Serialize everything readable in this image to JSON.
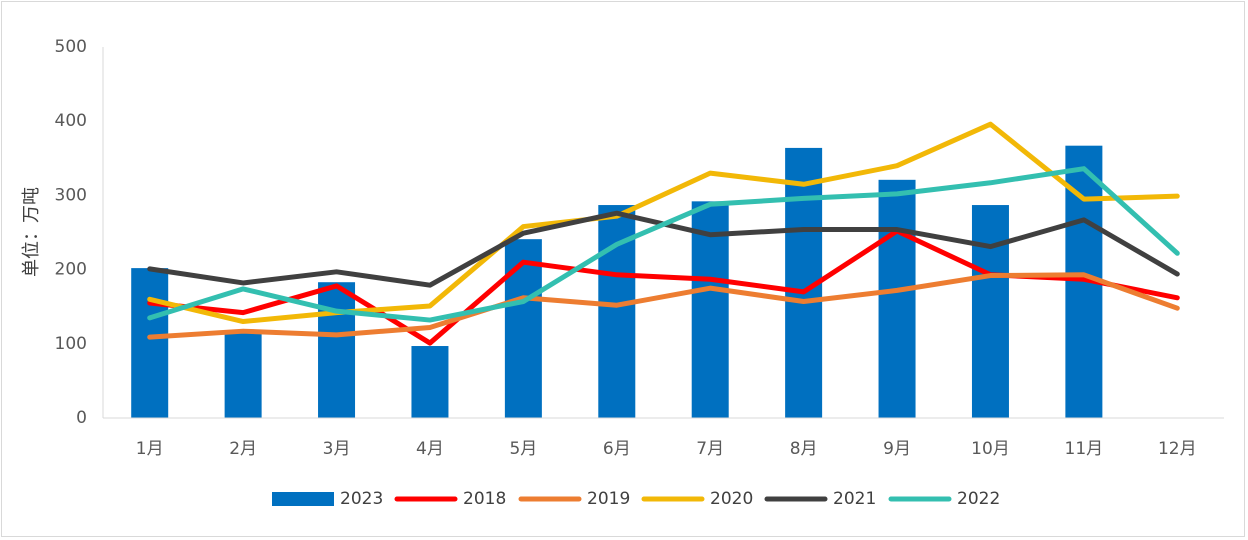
{
  "chart_data": {
    "type": "bar+line",
    "title": "",
    "ylabel": "单位：万吨",
    "xlabel": "",
    "ylim": [
      0,
      500
    ],
    "yticks": [
      0,
      100,
      200,
      300,
      400,
      500
    ],
    "grid": false,
    "legend_position": "bottom",
    "categories": [
      "1月",
      "2月",
      "3月",
      "4月",
      "5月",
      "6月",
      "7月",
      "8月",
      "9月",
      "10月",
      "11月",
      "12月"
    ],
    "bar_series": {
      "name": "2023",
      "color": "#0070C0",
      "values": [
        202,
        115,
        183,
        97,
        241,
        287,
        292,
        364,
        321,
        287,
        367,
        null
      ]
    },
    "line_series": [
      {
        "name": "2018",
        "color": "#FF0000",
        "values": [
          155,
          142,
          178,
          101,
          210,
          193,
          187,
          170,
          252,
          193,
          187,
          162
        ]
      },
      {
        "name": "2019",
        "color": "#ED7D31",
        "values": [
          109,
          117,
          112,
          122,
          162,
          152,
          175,
          157,
          172,
          192,
          193,
          148
        ]
      },
      {
        "name": "2020",
        "color": "#F2B807",
        "values": [
          160,
          130,
          142,
          151,
          258,
          272,
          330,
          315,
          340,
          396,
          295,
          299
        ]
      },
      {
        "name": "2021",
        "color": "#404040",
        "values": [
          201,
          182,
          197,
          179,
          249,
          276,
          247,
          254,
          254,
          231,
          267,
          194
        ]
      },
      {
        "name": "2022",
        "color": "#33BFB0",
        "values": [
          135,
          174,
          144,
          132,
          157,
          234,
          288,
          296,
          302,
          317,
          336,
          222
        ]
      }
    ]
  }
}
